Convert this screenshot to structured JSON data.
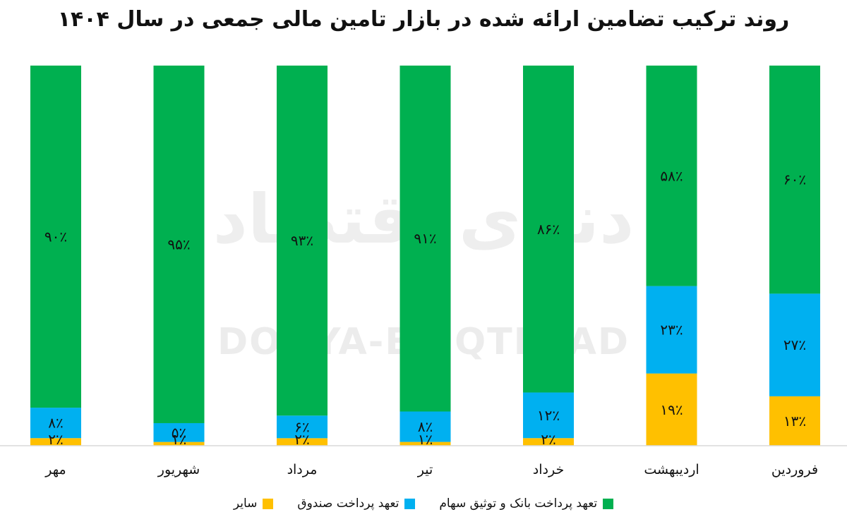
{
  "chart_data": {
    "type": "bar",
    "stacked": true,
    "percent": true,
    "title": "روند ترکیب تضامین ارائه شده در بازار تامین مالی جمعی در سال ۱۴۰۴",
    "categories": [
      "فروردین",
      "اردیبهشت",
      "خرداد",
      "تیر",
      "مرداد",
      "شهریور",
      "مهر"
    ],
    "series": [
      {
        "name": "سایر",
        "color": "#ffc000",
        "values": [
          13,
          19,
          2,
          1,
          2,
          1,
          2
        ],
        "labels": [
          "۱۳٪",
          "۱۹٪",
          "۲٪",
          "۱٪",
          "۲٪",
          "۱٪",
          "۲٪"
        ]
      },
      {
        "name": "تعهد پرداخت صندوق",
        "color": "#00b0f0",
        "values": [
          27,
          23,
          12,
          8,
          6,
          5,
          8
        ],
        "labels": [
          "۲۷٪",
          "۲۳٪",
          "۱۲٪",
          "۸٪",
          "۶٪",
          "۵٪",
          "۸٪"
        ]
      },
      {
        "name": "تعهد پرداخت بانک و توثیق سهام",
        "color": "#00b050",
        "values": [
          60,
          58,
          86,
          91,
          93,
          95,
          90
        ],
        "labels": [
          "۶۰٪",
          "۵۸٪",
          "۸۶٪",
          "۹۱٪",
          "۹۳٪",
          "۹۵٪",
          "۹۰٪"
        ]
      }
    ],
    "ylim": [
      0,
      100
    ],
    "grid": false,
    "legend_position": "bottom"
  },
  "watermark": {
    "logo": "دنیای اقتصاد",
    "text": "DONYA-E-EQTESAD"
  }
}
